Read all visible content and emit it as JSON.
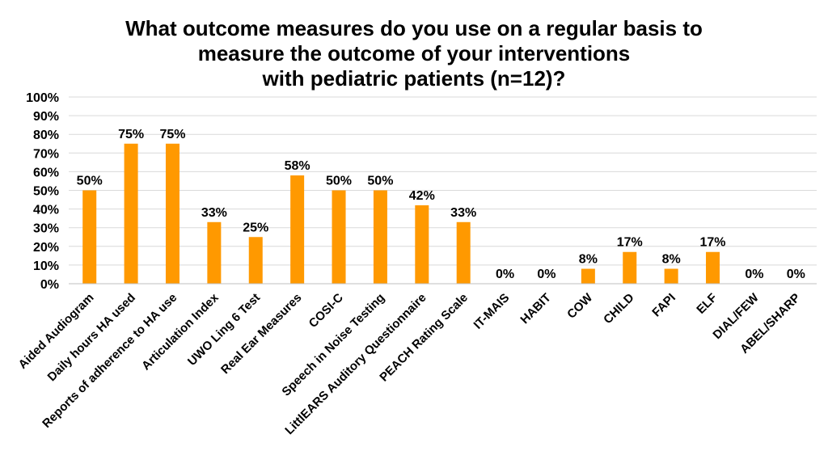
{
  "chart_data": {
    "type": "bar",
    "title_lines": [
      "What outcome measures do you use on a regular basis to",
      "measure the outcome of your interventions",
      "with pediatric patients (n=12)?"
    ],
    "categories": [
      "Aided Audiogram",
      "Daily hours HA used",
      "Reports of adherence to HA use",
      "Articulation Index",
      "UWO Ling 6 Test",
      "Real Ear Measures",
      "COSI-C",
      "Speech in Noise Testing",
      "LittlEARS Auditory Questionnaire",
      "PEACH Rating Scale",
      "IT-MAIS",
      "HABIT",
      "COW",
      "CHILD",
      "FAPI",
      "ELF",
      "DIAL/FEW",
      "ABEL/SHARP"
    ],
    "values": [
      50,
      75,
      75,
      33,
      25,
      58,
      50,
      50,
      42,
      33,
      0,
      0,
      8,
      17,
      8,
      17,
      0,
      0
    ],
    "value_labels": [
      "50%",
      "75%",
      "75%",
      "33%",
      "25%",
      "58%",
      "50%",
      "50%",
      "42%",
      "33%",
      "0%",
      "0%",
      "8%",
      "17%",
      "8%",
      "17%",
      "0%",
      "0%"
    ],
    "ylim": [
      0,
      100
    ],
    "yticks": [
      "0%",
      "10%",
      "20%",
      "30%",
      "40%",
      "50%",
      "60%",
      "70%",
      "80%",
      "90%",
      "100%"
    ],
    "grid": true,
    "bar_color": "#FF9900",
    "grid_color": "#D9D9D9"
  }
}
